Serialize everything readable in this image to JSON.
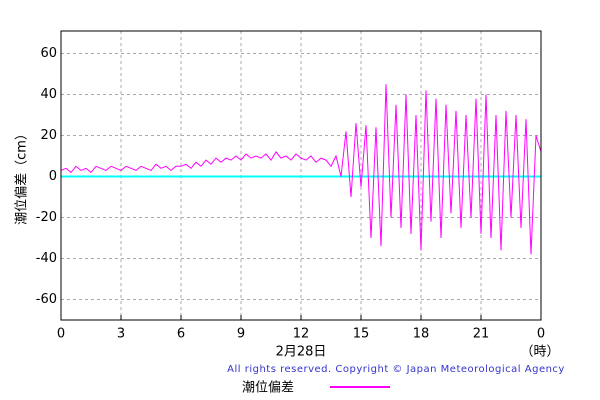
{
  "chart_data": {
    "type": "line",
    "y_label": "潮位偏差（cm）",
    "x_label": "2月28日",
    "x_unit": "（時）",
    "copyright": "All rights reserved. Copyright © Japan Meteorological Agency",
    "x": [
      0,
      0.25,
      0.5,
      0.75,
      1,
      1.25,
      1.5,
      1.75,
      2,
      2.25,
      2.5,
      2.75,
      3,
      3.25,
      3.5,
      3.75,
      4,
      4.25,
      4.5,
      4.75,
      5,
      5.25,
      5.5,
      5.75,
      6,
      6.25,
      6.5,
      6.75,
      7,
      7.25,
      7.5,
      7.75,
      8,
      8.25,
      8.5,
      8.75,
      9,
      9.25,
      9.5,
      9.75,
      10,
      10.25,
      10.5,
      10.75,
      11,
      11.25,
      11.5,
      11.75,
      12,
      12.25,
      12.5,
      12.75,
      13,
      13.25,
      13.5,
      13.75,
      14,
      14.25,
      14.5,
      14.75,
      15,
      15.25,
      15.5,
      15.75,
      16,
      16.25,
      16.5,
      16.75,
      17,
      17.25,
      17.5,
      17.75,
      18,
      18.25,
      18.5,
      18.75,
      19,
      19.25,
      19.5,
      19.75,
      20,
      20.25,
      20.5,
      20.75,
      21,
      21.25,
      21.5,
      21.75,
      22,
      22.25,
      22.5,
      22.75,
      23,
      23.25,
      23.5,
      23.75,
      24
    ],
    "series": [
      {
        "name": "潮位偏差",
        "color": "#ff00ff",
        "values": [
          3,
          4,
          2,
          5,
          3,
          4,
          2,
          5,
          4,
          3,
          5,
          4,
          3,
          5,
          4,
          3,
          5,
          4,
          3,
          6,
          4,
          5,
          3,
          5,
          5,
          6,
          4,
          7,
          5,
          8,
          6,
          9,
          7,
          9,
          8,
          10,
          8,
          11,
          9,
          10,
          9,
          11,
          8,
          12,
          9,
          10,
          8,
          11,
          9,
          8,
          10,
          7,
          9,
          8,
          5,
          10,
          0,
          22,
          -10,
          26,
          -5,
          25,
          -30,
          24,
          -34,
          45,
          -20,
          35,
          -25,
          40,
          -28,
          30,
          -36,
          42,
          -22,
          38,
          -30,
          35,
          -18,
          32,
          -25,
          30,
          -20,
          38,
          -28,
          40,
          -30,
          30,
          -36,
          32,
          -20,
          30,
          -25,
          28,
          -38,
          20,
          12
        ]
      }
    ],
    "zero_line": {
      "value": 0,
      "color": "#00ffff"
    },
    "xlim": [
      0,
      24
    ],
    "xticks": [
      0,
      3,
      6,
      9,
      12,
      15,
      18,
      21,
      {
        "value": 24,
        "label": "0"
      }
    ],
    "ylim": [
      -70,
      71
    ],
    "yticks": [
      60,
      40,
      20,
      0,
      -20,
      -40,
      -60
    ],
    "grid": true
  }
}
